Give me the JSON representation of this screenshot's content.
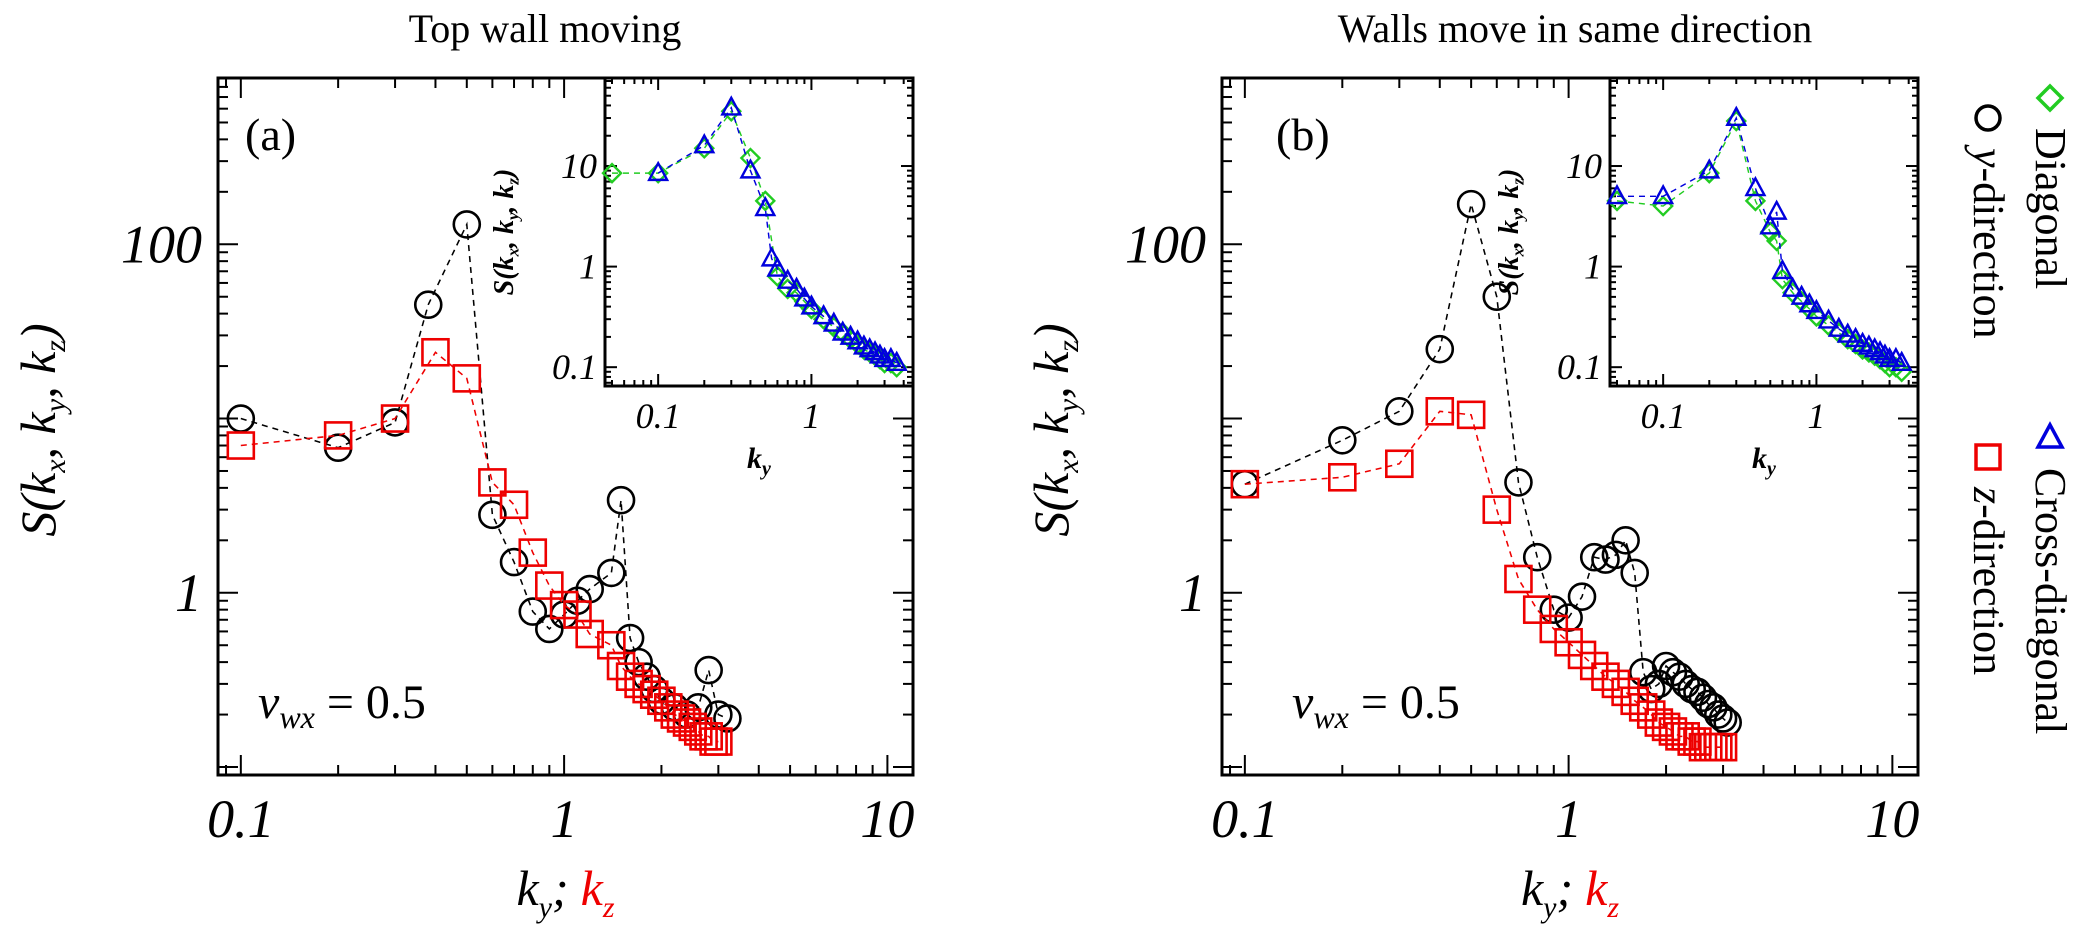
{
  "legend": {
    "placement": "right-vertical",
    "entries": [
      {
        "label": "Diagonal",
        "marker": "diamond",
        "color": "#22cc22"
      },
      {
        "label": "y-direction",
        "marker": "circle",
        "color": "#000000"
      },
      {
        "label": "Cross-diagonal",
        "marker": "triangle",
        "color": "#0000dd"
      },
      {
        "label": "z-direction",
        "marker": "square",
        "color": "#ee0000"
      }
    ]
  },
  "chart_data": [
    {
      "type": "scatter",
      "panel_label": "(a)",
      "title": "Top wall moving",
      "xlabel_parts": [
        {
          "text": "k",
          "sub": "y",
          "suffix": ";",
          "color": "#000000"
        },
        {
          "text": "k",
          "sub": "z",
          "suffix": "",
          "color": "#ee0000"
        }
      ],
      "ylabel": "S(kx, ky, kz)",
      "xscale": "log",
      "yscale": "log",
      "xlim": [
        0.085,
        12
      ],
      "ylim": [
        0.09,
        900
      ],
      "xticks": [
        {
          "v": 0.1,
          "label": "0.1"
        },
        {
          "v": 1,
          "label": "1"
        },
        {
          "v": 10,
          "label": "10"
        }
      ],
      "yticks": [
        {
          "v": 1,
          "label": "1"
        },
        {
          "v": 100,
          "label": "100"
        }
      ],
      "annotation": {
        "text": "v",
        "sub": "wx",
        "rest": " = 0.5"
      },
      "grid": false,
      "series": [
        {
          "name": "y-direction",
          "marker": "circle",
          "color": "#000000",
          "x": [
            0.1,
            0.2,
            0.3,
            0.38,
            0.5,
            0.6,
            0.7,
            0.8,
            0.9,
            1.0,
            1.1,
            1.2,
            1.4,
            1.5,
            1.6,
            1.7,
            1.8,
            1.9,
            2.0,
            2.2,
            2.4,
            2.6,
            2.8,
            3.0,
            3.2
          ],
          "y": [
            10,
            6.8,
            9.5,
            45,
            130,
            2.8,
            1.5,
            0.78,
            0.62,
            0.75,
            0.9,
            1.05,
            1.3,
            3.4,
            0.55,
            0.4,
            0.33,
            0.28,
            0.24,
            0.22,
            0.2,
            0.22,
            0.36,
            0.2,
            0.19
          ]
        },
        {
          "name": "z-direction",
          "marker": "square",
          "color": "#ee0000",
          "x": [
            0.1,
            0.2,
            0.3,
            0.4,
            0.5,
            0.6,
            0.7,
            0.8,
            0.9,
            1.0,
            1.1,
            1.2,
            1.4,
            1.5,
            1.6,
            1.7,
            1.8,
            1.9,
            2.0,
            2.1,
            2.2,
            2.3,
            2.4,
            2.5,
            2.6,
            2.7,
            2.8,
            2.9,
            3.0
          ],
          "y": [
            7.0,
            8.0,
            10.0,
            24,
            17,
            4.3,
            3.2,
            1.7,
            1.1,
            0.85,
            0.75,
            0.58,
            0.5,
            0.38,
            0.33,
            0.3,
            0.28,
            0.26,
            0.24,
            0.22,
            0.2,
            0.19,
            0.18,
            0.17,
            0.16,
            0.15,
            0.15,
            0.14,
            0.14
          ]
        }
      ],
      "inset": {
        "xlabel": "ky",
        "ylabel": "S(kx, ky, kz)",
        "xscale": "log",
        "yscale": "log",
        "xlim": [
          0.045,
          4.6
        ],
        "ylim": [
          0.065,
          75
        ],
        "xticks": [
          {
            "v": 0.1,
            "label": "0.1"
          },
          {
            "v": 1,
            "label": "1"
          }
        ],
        "yticks": [
          {
            "v": 0.1,
            "label": "0.1"
          },
          {
            "v": 1,
            "label": "1"
          },
          {
            "v": 10,
            "label": "10"
          }
        ],
        "series": [
          {
            "name": "Diagonal",
            "marker": "diamond",
            "color": "#22cc22",
            "x": [
              0.05,
              0.1,
              0.2,
              0.3,
              0.4,
              0.5,
              0.6,
              0.7,
              0.8,
              0.9,
              1.0,
              1.2,
              1.4,
              1.6,
              1.8,
              2.0,
              2.2,
              2.4,
              2.6,
              2.8,
              3.0,
              3.3,
              3.6
            ],
            "y": [
              8.5,
              8.5,
              15,
              35,
              12,
              4.5,
              0.8,
              0.6,
              0.55,
              0.45,
              0.38,
              0.3,
              0.25,
              0.22,
              0.19,
              0.17,
              0.15,
              0.14,
              0.13,
              0.12,
              0.11,
              0.11,
              0.1
            ]
          },
          {
            "name": "Cross-diagonal",
            "marker": "triangle",
            "color": "#0000dd",
            "x": [
              0.1,
              0.2,
              0.3,
              0.4,
              0.5,
              0.55,
              0.6,
              0.7,
              0.8,
              0.9,
              1.0,
              1.2,
              1.4,
              1.6,
              1.8,
              2.0,
              2.2,
              2.4,
              2.6,
              2.8,
              3.0,
              3.3,
              3.6
            ],
            "y": [
              8.5,
              16,
              38,
              9,
              3.8,
              1.2,
              0.95,
              0.72,
              0.6,
              0.48,
              0.4,
              0.32,
              0.27,
              0.22,
              0.2,
              0.18,
              0.16,
              0.15,
              0.14,
              0.13,
              0.12,
              0.12,
              0.11
            ]
          }
        ]
      }
    },
    {
      "type": "scatter",
      "panel_label": "(b)",
      "title": "Walls move in same direction",
      "xlabel_parts": [
        {
          "text": "k",
          "sub": "y",
          "suffix": ";",
          "color": "#000000"
        },
        {
          "text": "k",
          "sub": "z",
          "suffix": "",
          "color": "#ee0000"
        }
      ],
      "ylabel": "S(kx, ky, kz)",
      "xscale": "log",
      "yscale": "log",
      "xlim": [
        0.085,
        12
      ],
      "ylim": [
        0.09,
        900
      ],
      "xticks": [
        {
          "v": 0.1,
          "label": "0.1"
        },
        {
          "v": 1,
          "label": "1"
        },
        {
          "v": 10,
          "label": "10"
        }
      ],
      "yticks": [
        {
          "v": 1,
          "label": "1"
        },
        {
          "v": 100,
          "label": "100"
        }
      ],
      "annotation": {
        "text": "v",
        "sub": "wx",
        "rest": " = 0.5"
      },
      "grid": false,
      "series": [
        {
          "name": "y-direction",
          "marker": "circle",
          "color": "#000000",
          "x": [
            0.1,
            0.2,
            0.3,
            0.4,
            0.5,
            0.6,
            0.7,
            0.8,
            0.9,
            1.0,
            1.1,
            1.2,
            1.3,
            1.4,
            1.5,
            1.6,
            1.7,
            1.8,
            1.9,
            2.0,
            2.1,
            2.2,
            2.3,
            2.4,
            2.5,
            2.6,
            2.7,
            2.8,
            2.9,
            3.0,
            3.1
          ],
          "y": [
            4.2,
            7.5,
            11,
            25,
            170,
            50,
            4.3,
            1.6,
            0.8,
            0.72,
            0.95,
            1.6,
            1.55,
            1.65,
            2.0,
            1.3,
            0.35,
            0.28,
            0.3,
            0.38,
            0.35,
            0.33,
            0.3,
            0.28,
            0.27,
            0.25,
            0.23,
            0.22,
            0.2,
            0.19,
            0.18
          ]
        },
        {
          "name": "z-direction",
          "marker": "square",
          "color": "#ee0000",
          "x": [
            0.1,
            0.2,
            0.3,
            0.4,
            0.5,
            0.6,
            0.7,
            0.8,
            0.9,
            1.0,
            1.1,
            1.2,
            1.3,
            1.4,
            1.5,
            1.6,
            1.7,
            1.8,
            1.9,
            2.0,
            2.1,
            2.2,
            2.3,
            2.4,
            2.5,
            2.6,
            2.7,
            2.8,
            2.9,
            3.0
          ],
          "y": [
            4.2,
            4.6,
            5.5,
            11,
            10.5,
            3.0,
            1.2,
            0.8,
            0.62,
            0.52,
            0.44,
            0.38,
            0.33,
            0.3,
            0.27,
            0.24,
            0.22,
            0.2,
            0.18,
            0.17,
            0.16,
            0.15,
            0.15,
            0.14,
            0.14,
            0.13,
            0.13,
            0.13,
            0.13,
            0.13
          ]
        }
      ],
      "inset": {
        "xlabel": "ky",
        "ylabel": "S(kx, ky, kz)",
        "xscale": "log",
        "yscale": "log",
        "xlim": [
          0.045,
          4.6
        ],
        "ylim": [
          0.065,
          75
        ],
        "xticks": [
          {
            "v": 0.1,
            "label": "0.1"
          },
          {
            "v": 1,
            "label": "1"
          }
        ],
        "yticks": [
          {
            "v": 0.1,
            "label": "0.1"
          },
          {
            "v": 1,
            "label": "1"
          },
          {
            "v": 10,
            "label": "10"
          }
        ],
        "series": [
          {
            "name": "Diagonal",
            "marker": "diamond",
            "color": "#22cc22",
            "x": [
              0.05,
              0.1,
              0.2,
              0.3,
              0.4,
              0.5,
              0.55,
              0.6,
              0.7,
              0.8,
              0.9,
              1.0,
              1.2,
              1.4,
              1.6,
              1.8,
              2.0,
              2.2,
              2.4,
              2.6,
              2.8,
              3.0,
              3.3,
              3.6
            ],
            "y": [
              4.5,
              4.0,
              8.5,
              28,
              4.5,
              2.2,
              1.8,
              0.75,
              0.55,
              0.45,
              0.38,
              0.32,
              0.26,
              0.22,
              0.19,
              0.17,
              0.15,
              0.14,
              0.13,
              0.12,
              0.11,
              0.1,
              0.1,
              0.09
            ]
          },
          {
            "name": "Cross-diagonal",
            "marker": "triangle",
            "color": "#0000dd",
            "x": [
              0.05,
              0.1,
              0.2,
              0.3,
              0.4,
              0.5,
              0.55,
              0.6,
              0.7,
              0.8,
              0.9,
              1.0,
              1.2,
              1.4,
              1.6,
              1.8,
              2.0,
              2.2,
              2.4,
              2.6,
              2.8,
              3.0,
              3.3,
              3.6
            ],
            "y": [
              5.0,
              5.0,
              9.0,
              30,
              6.0,
              2.5,
              3.5,
              0.9,
              0.6,
              0.5,
              0.42,
              0.36,
              0.29,
              0.24,
              0.21,
              0.19,
              0.17,
              0.16,
              0.15,
              0.14,
              0.13,
              0.12,
              0.12,
              0.11
            ]
          }
        ]
      }
    }
  ]
}
